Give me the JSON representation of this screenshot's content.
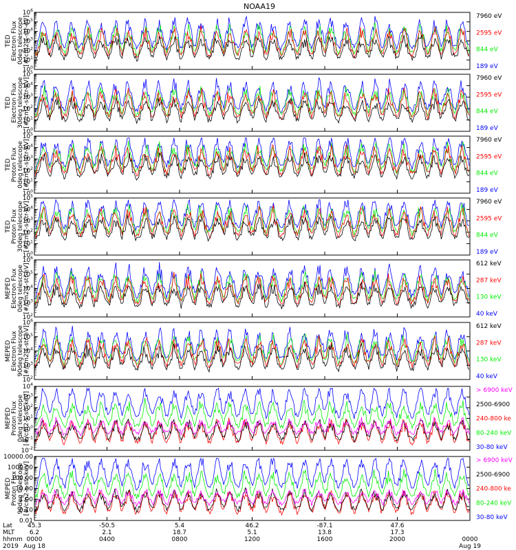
{
  "title": "NOAA19",
  "colors": {
    "black": "#000000",
    "red": "#ff0000",
    "green": "#00ee00",
    "blue": "#0000ff",
    "magenta": "#ff00ff"
  },
  "chart_data": [
    {
      "type": "line",
      "ylabel": [
        "TED",
        "Electron Flux",
        "0deg telescope",
        "[#/cm2-s-str-eV]"
      ],
      "y_scale": "log",
      "ylim": [
        1,
        1000000
      ],
      "ytick_labels": [
        "10^0",
        "10^1",
        "10^2",
        "10^3",
        "10^4",
        "10^5",
        "10^6"
      ],
      "legend_position": "right",
      "series": [
        {
          "name": "7960 eV",
          "color": "#000000"
        },
        {
          "name": "2595 eV",
          "color": "#ff0000"
        },
        {
          "name": "844 eV",
          "color": "#00ee00"
        },
        {
          "name": "189 eV",
          "color": "#0000ff"
        }
      ]
    },
    {
      "type": "line",
      "ylabel": [
        "TED",
        "Electron Flux",
        "30deg telescope",
        "[#/cm2-s-str-eV]"
      ],
      "y_scale": "log",
      "ylim": [
        1,
        100000
      ],
      "ytick_labels": [
        "10^0",
        "10^1",
        "10^2",
        "10^3",
        "10^4",
        "10^5"
      ],
      "legend_position": "right",
      "series": [
        {
          "name": "7960 eV",
          "color": "#000000"
        },
        {
          "name": "2595 eV",
          "color": "#ff0000"
        },
        {
          "name": "844 eV",
          "color": "#00ee00"
        },
        {
          "name": "189 eV",
          "color": "#0000ff"
        }
      ]
    },
    {
      "type": "line",
      "ylabel": [
        "TED",
        "Proton Flux",
        "0deg telescope",
        "[#/cm2-s-str-eV]"
      ],
      "y_scale": "log",
      "ylim": [
        1,
        100000
      ],
      "ytick_labels": [
        "10^0",
        "10^1",
        "10^2",
        "10^3",
        "10^4",
        "10^5"
      ],
      "legend_position": "right",
      "series": [
        {
          "name": "7960 eV",
          "color": "#000000"
        },
        {
          "name": "2595 eV",
          "color": "#ff0000"
        },
        {
          "name": "844 eV",
          "color": "#00ee00"
        },
        {
          "name": "189 eV",
          "color": "#0000ff"
        }
      ]
    },
    {
      "type": "line",
      "ylabel": [
        "TED",
        "Proton Flux",
        "30deg telescope",
        "[#/cm2-s-str-eV]"
      ],
      "y_scale": "log",
      "ylim": [
        1,
        100000
      ],
      "ytick_labels": [
        "10^0",
        "10^1",
        "10^2",
        "10^3",
        "10^4",
        "10^5"
      ],
      "legend_position": "right",
      "series": [
        {
          "name": "7960 eV",
          "color": "#000000"
        },
        {
          "name": "2595 eV",
          "color": "#ff0000"
        },
        {
          "name": "844 eV",
          "color": "#00ee00"
        },
        {
          "name": "189 eV",
          "color": "#0000ff"
        }
      ]
    },
    {
      "type": "line",
      "ylabel": [
        "MEPED",
        "Electron Flux",
        "0deg telescope",
        "[#/cm2-s-str-eV]"
      ],
      "y_scale": "log",
      "ylim": [
        100,
        1000000
      ],
      "ytick_labels": [
        "10^2",
        "10^3",
        "10^4",
        "10^5",
        "10^6"
      ],
      "legend_position": "right",
      "series": [
        {
          "name": "612 keV",
          "color": "#000000"
        },
        {
          "name": "287 keV",
          "color": "#ff0000"
        },
        {
          "name": "130 keV",
          "color": "#00ee00"
        },
        {
          "name": "40 keV",
          "color": "#0000ff"
        }
      ]
    },
    {
      "type": "line",
      "ylabel": [
        "MEPED",
        "Electron Flux",
        "90deg telescope",
        "[#/cm2-s-str-eV]"
      ],
      "y_scale": "log",
      "ylim": [
        100,
        1000000
      ],
      "ytick_labels": [
        "10^2",
        "10^3",
        "10^4",
        "10^5",
        "10^6"
      ],
      "legend_position": "right",
      "series": [
        {
          "name": "612 keV",
          "color": "#000000"
        },
        {
          "name": "287 keV",
          "color": "#ff0000"
        },
        {
          "name": "130 keV",
          "color": "#00ee00"
        },
        {
          "name": "40 keV",
          "color": "#0000ff"
        }
      ]
    },
    {
      "type": "line",
      "ylabel": [
        "MEPED",
        "Proton Flux",
        "0deg telescope",
        "[#/cm2-s-str-keV]"
      ],
      "y_scale": "log",
      "ylim": [
        0.01,
        10000
      ],
      "ytick_labels": [
        "10^-2",
        "10^-1",
        "10^0",
        "10^1",
        "10^2",
        "10^3",
        "10^4"
      ],
      "legend_position": "right",
      "series": [
        {
          "name": "> 6900 keV",
          "color": "#ff00ff"
        },
        {
          "name": "2500-6900",
          "color": "#000000"
        },
        {
          "name": "240-800 ke",
          "color": "#ff0000"
        },
        {
          "name": "80-240 keV",
          "color": "#00ee00"
        },
        {
          "name": "30-80 keV",
          "color": "#0000ff"
        }
      ]
    },
    {
      "type": "line",
      "ylabel": [
        "MEPED",
        "Proton Flux",
        "90deg telescope",
        "[#/cm2-s-str-keV]"
      ],
      "y_scale": "log",
      "ylim": [
        0.01,
        10000
      ],
      "ytick_labels": [
        "0.01",
        "0.10",
        "1.00",
        "10.00",
        "100.00",
        "1000.00",
        "10000.00"
      ],
      "legend_position": "right",
      "series": [
        {
          "name": "> 6900 keV",
          "color": "#ff00ff"
        },
        {
          "name": "2500-6900",
          "color": "#000000"
        },
        {
          "name": "240-800 ke",
          "color": "#ff0000"
        },
        {
          "name": "80-240 keV",
          "color": "#00ee00"
        },
        {
          "name": "30-80 keV",
          "color": "#0000ff"
        }
      ]
    }
  ],
  "xaxis": {
    "row_labels": [
      "Lat",
      "MLT",
      "hhmm",
      "2019"
    ],
    "ticks": [
      {
        "lat": "45.3",
        "mlt": "6.2",
        "hhmm": "0000",
        "date": "Aug 18"
      },
      {
        "lat": "-50.5",
        "mlt": "2.1",
        "hhmm": "0400",
        "date": ""
      },
      {
        "lat": "5.4",
        "mlt": "18.7",
        "hhmm": "0800",
        "date": ""
      },
      {
        "lat": "46.2",
        "mlt": "5.1",
        "hhmm": "1200",
        "date": ""
      },
      {
        "lat": "-87.1",
        "mlt": "13.8",
        "hhmm": "1600",
        "date": ""
      },
      {
        "lat": "47.6",
        "mlt": "17.3",
        "hhmm": "2000",
        "date": ""
      },
      {
        "lat": "",
        "mlt": "",
        "hhmm": "0000",
        "date": "Aug 19"
      }
    ]
  }
}
